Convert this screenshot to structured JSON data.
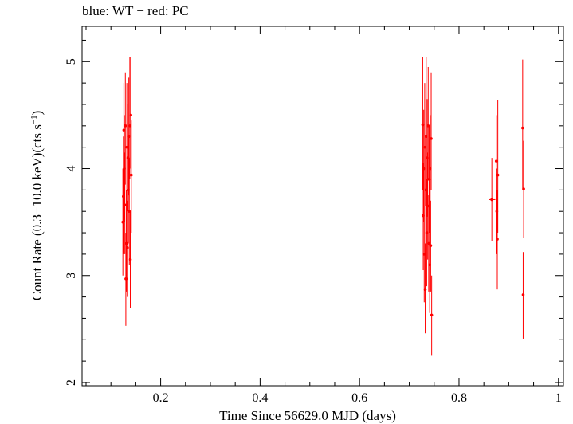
{
  "chart_data": {
    "type": "scatter",
    "title": "blue: WT − red: PC",
    "xlabel": "Time Since 56629.0 MJD (days)",
    "ylabel": "Count Rate (0.3−10.0 keV)(cts s",
    "ylabel_sup": "−1",
    "ylabel_tail": ")",
    "xlim": [
      0.042,
      1.01
    ],
    "ylim": [
      1.97,
      5.33
    ],
    "xticks": [
      0.2,
      0.4,
      0.6,
      0.8,
      1
    ],
    "xtick_labels": [
      "0.2",
      "0.4",
      "0.6",
      "0.8",
      "1"
    ],
    "yticks": [
      2,
      3,
      4,
      5
    ],
    "ytick_labels": [
      "2",
      "3",
      "4",
      "5"
    ],
    "grid": false,
    "series": [
      {
        "color": "#ff0000",
        "points": [
          {
            "x": 0.124,
            "y": 3.5,
            "ylo": 3.0,
            "yhi": 4.0
          },
          {
            "x": 0.125,
            "y": 3.74,
            "ylo": 3.2,
            "yhi": 4.3
          },
          {
            "x": 0.126,
            "y": 4.36,
            "ylo": 3.8,
            "yhi": 4.8
          },
          {
            "x": 0.127,
            "y": 4.0,
            "ylo": 3.5,
            "yhi": 4.5
          },
          {
            "x": 0.128,
            "y": 3.66,
            "ylo": 3.2,
            "yhi": 4.15
          },
          {
            "x": 0.129,
            "y": 4.4,
            "ylo": 3.85,
            "yhi": 4.9
          },
          {
            "x": 0.13,
            "y": 2.97,
            "ylo": 2.53,
            "yhi": 3.4
          },
          {
            "x": 0.131,
            "y": 3.3,
            "ylo": 2.85,
            "yhi": 3.8
          },
          {
            "x": 0.132,
            "y": 4.2,
            "ylo": 3.6,
            "yhi": 4.8
          },
          {
            "x": 0.133,
            "y": 3.26,
            "ylo": 2.8,
            "yhi": 3.7
          },
          {
            "x": 0.134,
            "y": 4.1,
            "ylo": 3.6,
            "yhi": 4.6
          },
          {
            "x": 0.135,
            "y": 3.8,
            "ylo": 3.3,
            "yhi": 4.3
          },
          {
            "x": 0.136,
            "y": 4.3,
            "ylo": 3.75,
            "yhi": 4.85
          },
          {
            "x": 0.137,
            "y": 3.6,
            "ylo": 3.1,
            "yhi": 4.1
          },
          {
            "x": 0.138,
            "y": 4.4,
            "ylo": 3.9,
            "yhi": 5.04
          },
          {
            "x": 0.139,
            "y": 3.15,
            "ylo": 2.7,
            "yhi": 3.6
          },
          {
            "x": 0.14,
            "y": 4.5,
            "ylo": 4.0,
            "yhi": 5.04
          },
          {
            "x": 0.141,
            "y": 3.94,
            "ylo": 3.4,
            "yhi": 4.45
          },
          {
            "x": 0.727,
            "y": 4.41,
            "ylo": 3.8,
            "yhi": 5.04
          },
          {
            "x": 0.728,
            "y": 3.56,
            "ylo": 3.05,
            "yhi": 4.05
          },
          {
            "x": 0.729,
            "y": 4.0,
            "ylo": 3.5,
            "yhi": 4.55
          },
          {
            "x": 0.73,
            "y": 3.2,
            "ylo": 2.75,
            "yhi": 3.65
          },
          {
            "x": 0.731,
            "y": 4.2,
            "ylo": 3.65,
            "yhi": 4.8
          },
          {
            "x": 0.732,
            "y": 2.87,
            "ylo": 2.46,
            "yhi": 3.3
          },
          {
            "x": 0.733,
            "y": 3.8,
            "ylo": 3.3,
            "yhi": 4.3
          },
          {
            "x": 0.734,
            "y": 4.3,
            "ylo": 3.8,
            "yhi": 5.04
          },
          {
            "x": 0.735,
            "y": 3.4,
            "ylo": 2.9,
            "yhi": 3.9
          },
          {
            "x": 0.736,
            "y": 4.1,
            "ylo": 3.55,
            "yhi": 4.65
          },
          {
            "x": 0.737,
            "y": 3.65,
            "ylo": 3.15,
            "yhi": 4.15
          },
          {
            "x": 0.738,
            "y": 4.4,
            "ylo": 3.9,
            "yhi": 4.95
          },
          {
            "x": 0.739,
            "y": 3.3,
            "ylo": 2.85,
            "yhi": 3.75
          },
          {
            "x": 0.74,
            "y": 3.9,
            "ylo": 3.4,
            "yhi": 4.4
          },
          {
            "x": 0.741,
            "y": 3.1,
            "ylo": 2.65,
            "yhi": 3.55
          },
          {
            "x": 0.742,
            "y": 4.0,
            "ylo": 3.5,
            "yhi": 4.5
          },
          {
            "x": 0.743,
            "y": 3.28,
            "ylo": 2.85,
            "yhi": 3.7
          },
          {
            "x": 0.744,
            "y": 4.28,
            "ylo": 3.8,
            "yhi": 4.9
          },
          {
            "x": 0.745,
            "y": 2.63,
            "ylo": 2.25,
            "yhi": 3.0
          },
          {
            "x": 0.866,
            "y": 3.71,
            "ylo": 3.32,
            "yhi": 4.1,
            "xlo": 0.86,
            "xhi": 0.873
          },
          {
            "x": 0.875,
            "y": 4.07,
            "ylo": 3.7,
            "yhi": 4.5
          },
          {
            "x": 0.876,
            "y": 3.6,
            "ylo": 3.2,
            "yhi": 4.0
          },
          {
            "x": 0.877,
            "y": 3.34,
            "ylo": 2.87,
            "yhi": 3.8
          },
          {
            "x": 0.878,
            "y": 3.94,
            "ylo": 3.4,
            "yhi": 4.64
          },
          {
            "x": 0.928,
            "y": 4.38,
            "ylo": 3.8,
            "yhi": 5.02
          },
          {
            "x": 0.929,
            "y": 2.82,
            "ylo": 2.41,
            "yhi": 3.22
          },
          {
            "x": 0.93,
            "y": 3.81,
            "ylo": 3.35,
            "yhi": 4.26
          }
        ]
      }
    ]
  }
}
